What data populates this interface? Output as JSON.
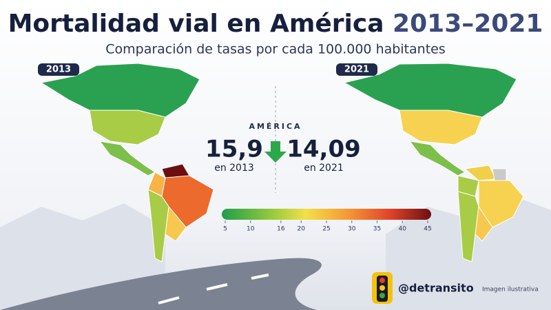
{
  "header": {
    "title": "Mortalidad vial en América",
    "years": "2013–2021",
    "subtitle": "Comparación de tasas por cada 100.000 habitantes"
  },
  "maps": [
    {
      "label": "2013"
    },
    {
      "label": "2021"
    }
  ],
  "summary": {
    "region": "AMÉRICA",
    "before": {
      "value": "15,9",
      "caption": "en 2013"
    },
    "after": {
      "value": "14,09",
      "caption": "en 2021"
    }
  },
  "scale": {
    "range": [
      5,
      45
    ],
    "ticks": [
      5,
      10,
      16,
      20,
      25,
      30,
      35,
      40,
      45
    ]
  },
  "footer": {
    "handle": "@detransito",
    "note": "Imagen ilustrativa"
  }
}
